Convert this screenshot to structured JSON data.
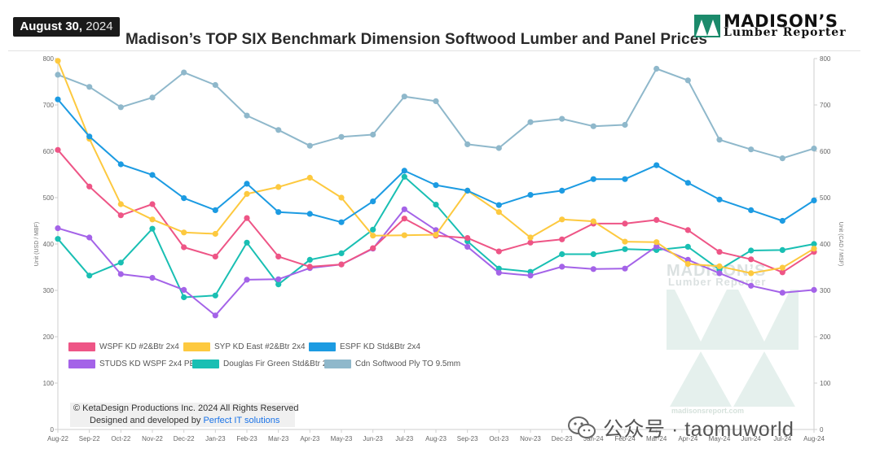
{
  "header": {
    "date_bold": "August 30,",
    "date_year": "2024",
    "title": "Madison’s TOP SIX Benchmark Dimension Softwood Lumber and Panel Prices"
  },
  "logo": {
    "name": "MADISON’S",
    "sub": "Lumber Reporter"
  },
  "chart_data": {
    "type": "line",
    "title": "Madison’s TOP SIX Benchmark Dimension Softwood Lumber and Panel Prices",
    "ylabel": "Unit (USD / MBF)",
    "y2label": "Unit (CAD / MSF)",
    "ylim": [
      0,
      800
    ],
    "yticks": [
      0,
      100,
      200,
      300,
      400,
      500,
      600,
      700,
      800
    ],
    "grid": false,
    "legend_position": "bottom-left",
    "categories": [
      "Aug-22",
      "Sep-22",
      "Oct-22",
      "Nov-22",
      "Dec-22",
      "Jan-23",
      "Feb-23",
      "Mar-23",
      "Apr-23",
      "May-23",
      "Jun-23",
      "Jul-23",
      "Aug-23",
      "Sep-23",
      "Oct-23",
      "Nov-23",
      "Dec-23",
      "Jan-24",
      "Feb-24",
      "Mar-24",
      "Apr-24",
      "May-24",
      "Jun-24",
      "Jul-24",
      "Aug-24"
    ],
    "series": [
      {
        "name": "WSPF KD #2&Btr 2x4",
        "color": "#ee5586",
        "values": [
          603,
          524,
          462,
          486,
          393,
          373,
          456,
          373,
          351,
          356,
          391,
          455,
          418,
          413,
          384,
          403,
          410,
          444,
          444,
          452,
          430,
          383,
          367,
          339,
          383
        ]
      },
      {
        "name": "SYP KD East #2&Btr 2x4",
        "color": "#fdc93f",
        "values": [
          795,
          627,
          486,
          453,
          425,
          422,
          508,
          523,
          543,
          500,
          418,
          419,
          420,
          515,
          469,
          414,
          453,
          449,
          405,
          404,
          357,
          352,
          337,
          349,
          390
        ]
      },
      {
        "name": "ESPF KD Std&Btr 2x4",
        "color": "#1c9be2",
        "values": [
          712,
          632,
          572,
          549,
          499,
          473,
          530,
          469,
          465,
          447,
          492,
          558,
          527,
          515,
          484,
          506,
          515,
          540,
          540,
          570,
          532,
          496,
          473,
          450,
          494
        ]
      },
      {
        "name": "STUDS KD WSPF 2x4 PET",
        "color": "#a463e8",
        "values": [
          434,
          414,
          335,
          327,
          301,
          246,
          323,
          324,
          348,
          356,
          390,
          475,
          430,
          394,
          338,
          332,
          351,
          346,
          347,
          395,
          366,
          337,
          310,
          295,
          301
        ]
      },
      {
        "name": "Douglas Fir Green Std&Btr 2x4",
        "color": "#19bfb3",
        "values": [
          411,
          332,
          360,
          433,
          285,
          289,
          403,
          313,
          366,
          380,
          431,
          545,
          485,
          406,
          347,
          340,
          378,
          378,
          389,
          387,
          394,
          345,
          386,
          387,
          400
        ]
      },
      {
        "name": "Cdn Softwood Ply TO 9.5mm",
        "color": "#8fb8cb",
        "values": [
          765,
          739,
          695,
          716,
          770,
          743,
          677,
          646,
          612,
          631,
          636,
          718,
          708,
          615,
          607,
          663,
          670,
          654,
          657,
          778,
          753,
          625,
          604,
          585,
          606
        ]
      }
    ]
  },
  "legend": [
    {
      "label": "WSPF KD #2&Btr 2x4",
      "color": "#ee5586"
    },
    {
      "label": "SYP KD East #2&Btr 2x4",
      "color": "#fdc93f"
    },
    {
      "label": "ESPF KD Std&Btr 2x4",
      "color": "#1c9be2"
    },
    {
      "label": "STUDS KD WSPF 2x4 PET",
      "color": "#a463e8"
    },
    {
      "label": "Douglas Fir Green Std&Btr 2x4",
      "color": "#19bfb3"
    },
    {
      "label": "Cdn Softwood Ply TO 9.5mm",
      "color": "#8fb8cb"
    }
  ],
  "copyright": {
    "line1": "© KetaDesign Productions Inc. 2024 All Rights Reserved",
    "line2_prefix": "Designed and developed by ",
    "line2_link": "Perfect IT solutions"
  },
  "watermark": {
    "line1": "MADISON’S",
    "line2": "Lumber Reporter",
    "url": "madisonsreport.com"
  },
  "wechat": {
    "text": "公众号 · taomuworld"
  }
}
